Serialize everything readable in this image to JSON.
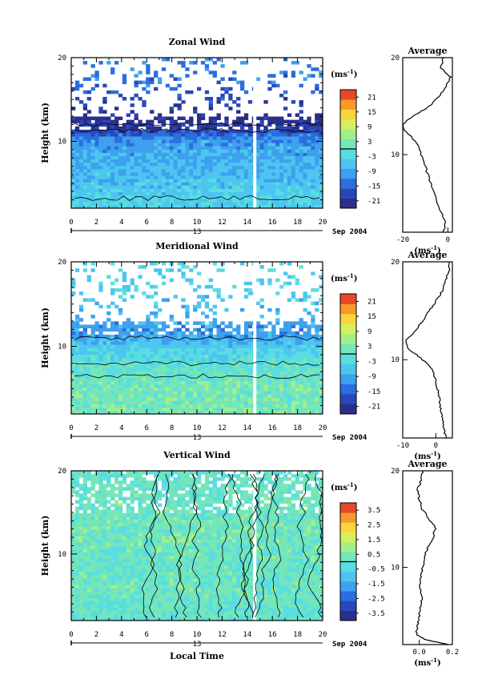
{
  "shared": {
    "ylabel": "Height (km)",
    "xlabel": "Local Time",
    "date_day": "13",
    "date_label": "Sep 2004",
    "unit_label": "(ms",
    "unit_exp": "-1",
    "average_title": "Average",
    "colormap": [
      "#2b2f8a",
      "#2a47b8",
      "#2b6ee0",
      "#3ea0ee",
      "#4cc6f0",
      "#59dde0",
      "#74e6b8",
      "#a2ef8c",
      "#d6ef5c",
      "#f7d53c",
      "#f79a2a",
      "#e8482a"
    ]
  },
  "chart_data": [
    {
      "type": "heatmap",
      "title": "Zonal Wind",
      "x_ticks": [
        "0",
        "2",
        "4",
        "6",
        "8",
        "10",
        "12",
        "14",
        "16",
        "18",
        "20"
      ],
      "xlim": [
        0,
        20
      ],
      "y_ticks": [
        "10",
        "20"
      ],
      "ylim": [
        2,
        20
      ],
      "colorbar_ticks": [
        "21",
        "15",
        "9",
        "3",
        "-3",
        "-9",
        "-15",
        "-21"
      ],
      "colorbar_range": [
        -24,
        24
      ],
      "missing_time_h": 14.6,
      "levels_km": [
        3,
        5,
        7,
        9,
        10.5,
        11.5,
        13,
        14.5,
        17,
        19
      ],
      "values_ms": [
        -4,
        -6,
        -8,
        -9,
        -12,
        -20,
        -22,
        -18,
        -14,
        -12
      ],
      "valid_top_km": 13,
      "average": {
        "xlim": [
          -20,
          2
        ],
        "x_ticks": [
          "-20",
          "0"
        ],
        "y_ticks": [
          "10",
          "20"
        ],
        "height_km": [
          2,
          3,
          4,
          6,
          8,
          9.5,
          11,
          12,
          13,
          14,
          15,
          16,
          17,
          18,
          18.5,
          19,
          20
        ],
        "values_ms": [
          -2,
          -1,
          -3,
          -6,
          -9,
          -11,
          -13,
          -17,
          -21,
          -15,
          -8,
          -4,
          -1,
          1,
          -1,
          -3,
          -2
        ]
      }
    },
    {
      "type": "heatmap",
      "title": "Meridional Wind",
      "x_ticks": [
        "0",
        "2",
        "4",
        "6",
        "8",
        "10",
        "12",
        "14",
        "16",
        "18",
        "20"
      ],
      "xlim": [
        0,
        20
      ],
      "y_ticks": [
        "10",
        "20"
      ],
      "ylim": [
        2,
        20
      ],
      "colorbar_ticks": [
        "21",
        "15",
        "9",
        "3",
        "-3",
        "-9",
        "-15",
        "-21"
      ],
      "colorbar_range": [
        -24,
        24
      ],
      "missing_time_h": 14.6,
      "levels_km": [
        3,
        5,
        6.5,
        8,
        9.5,
        10.5,
        11.5,
        13,
        15,
        17,
        19
      ],
      "values_ms": [
        2,
        2,
        1,
        -1,
        -4,
        -7,
        -11,
        -9,
        -6,
        -4,
        -3
      ],
      "valid_top_km": 13,
      "average": {
        "xlim": [
          -10,
          5
        ],
        "x_ticks": [
          "-10",
          "0"
        ],
        "y_ticks": [
          "10",
          "20"
        ],
        "height_km": [
          2,
          3,
          4,
          5,
          6,
          7,
          8,
          9,
          10,
          11,
          12,
          13,
          14,
          15,
          16,
          17,
          18,
          19,
          20
        ],
        "values_ms": [
          3,
          2.5,
          2,
          1.5,
          1,
          0.5,
          0,
          -1,
          -4,
          -8,
          -9,
          -6,
          -4,
          -2,
          0,
          2,
          3,
          4,
          4
        ]
      }
    },
    {
      "type": "heatmap",
      "title": "Vertical Wind",
      "x_ticks": [
        "0",
        "2",
        "4",
        "6",
        "8",
        "10",
        "12",
        "14",
        "16",
        "18",
        "20"
      ],
      "xlim": [
        0,
        20
      ],
      "y_ticks": [
        "10",
        "20"
      ],
      "ylim": [
        2,
        20
      ],
      "colorbar_ticks": [
        "3.5",
        "2.5",
        "1.5",
        "0.5",
        "-0.5",
        "-1.5",
        "-2.5",
        "-3.5"
      ],
      "colorbar_range": [
        -4,
        4
      ],
      "missing_time_h": 14.6,
      "levels_km": [
        3,
        6,
        9,
        12,
        15,
        18
      ],
      "values_ms": [
        0,
        0.2,
        0.1,
        0.3,
        0.2,
        0.1
      ],
      "valid_top_km": 20,
      "average": {
        "xlim": [
          -0.1,
          0.2
        ],
        "x_ticks": [
          "0.0",
          "0.2"
        ],
        "y_ticks": [
          "10",
          "20"
        ],
        "height_km": [
          2,
          2.5,
          3,
          4,
          5,
          6,
          7,
          8,
          9,
          10,
          11,
          12,
          13,
          14,
          15,
          16,
          17,
          18,
          19,
          20
        ],
        "values_ms": [
          0.18,
          0.04,
          -0.02,
          -0.01,
          0,
          0.01,
          0.02,
          0,
          0.01,
          0.02,
          0.03,
          0.05,
          0.08,
          0.1,
          0.06,
          0.02,
          0,
          -0.01,
          0.01,
          0.02
        ]
      }
    }
  ]
}
